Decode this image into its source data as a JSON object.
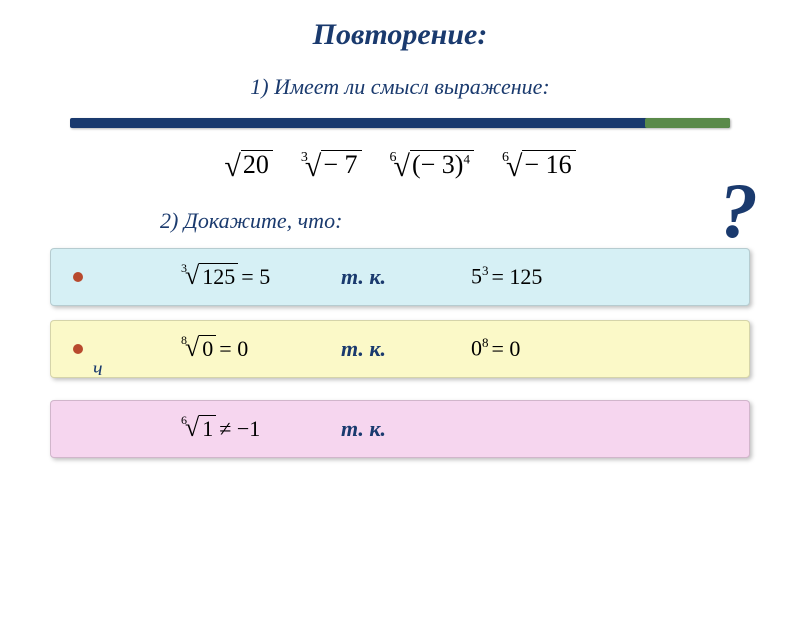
{
  "title": "Повторение:",
  "question1": "1)  Имеет ли  смысл  выражение:",
  "question2": "2)  Докажите,  что:",
  "qmark": "?",
  "tk": "т. к.",
  "expressions": {
    "e1": {
      "radicand": "20"
    },
    "e2": {
      "index": "3",
      "radicand": "− 7"
    },
    "e3": {
      "index": "6",
      "base": "(− 3)",
      "exp": "4"
    },
    "e4": {
      "index": "6",
      "radicand": "− 16"
    }
  },
  "proofs": {
    "a": {
      "lhs_index": "3",
      "lhs_radicand": "125",
      "lhs_eq": "= 5",
      "rhs_base": "5",
      "rhs_exp": "3",
      "rhs_eq": "= 125"
    },
    "b": {
      "lhs_index": "8",
      "lhs_radicand": "0",
      "lhs_eq": "= 0",
      "rhs_base": "0",
      "rhs_exp": "8",
      "rhs_eq": "= 0"
    },
    "c": {
      "lhs_index": "6",
      "lhs_radicand": "1",
      "lhs_eq": "≠ −1"
    }
  },
  "colors": {
    "title": "#1a3a6e",
    "hr_main": "#1a3a6e",
    "hr_accent": "#5a8a4a",
    "row_a": "#d6f0f5",
    "row_b": "#fbf9c8",
    "row_c": "#f6d6ef",
    "bullet": "#b84a2e",
    "background": "#ffffff"
  }
}
